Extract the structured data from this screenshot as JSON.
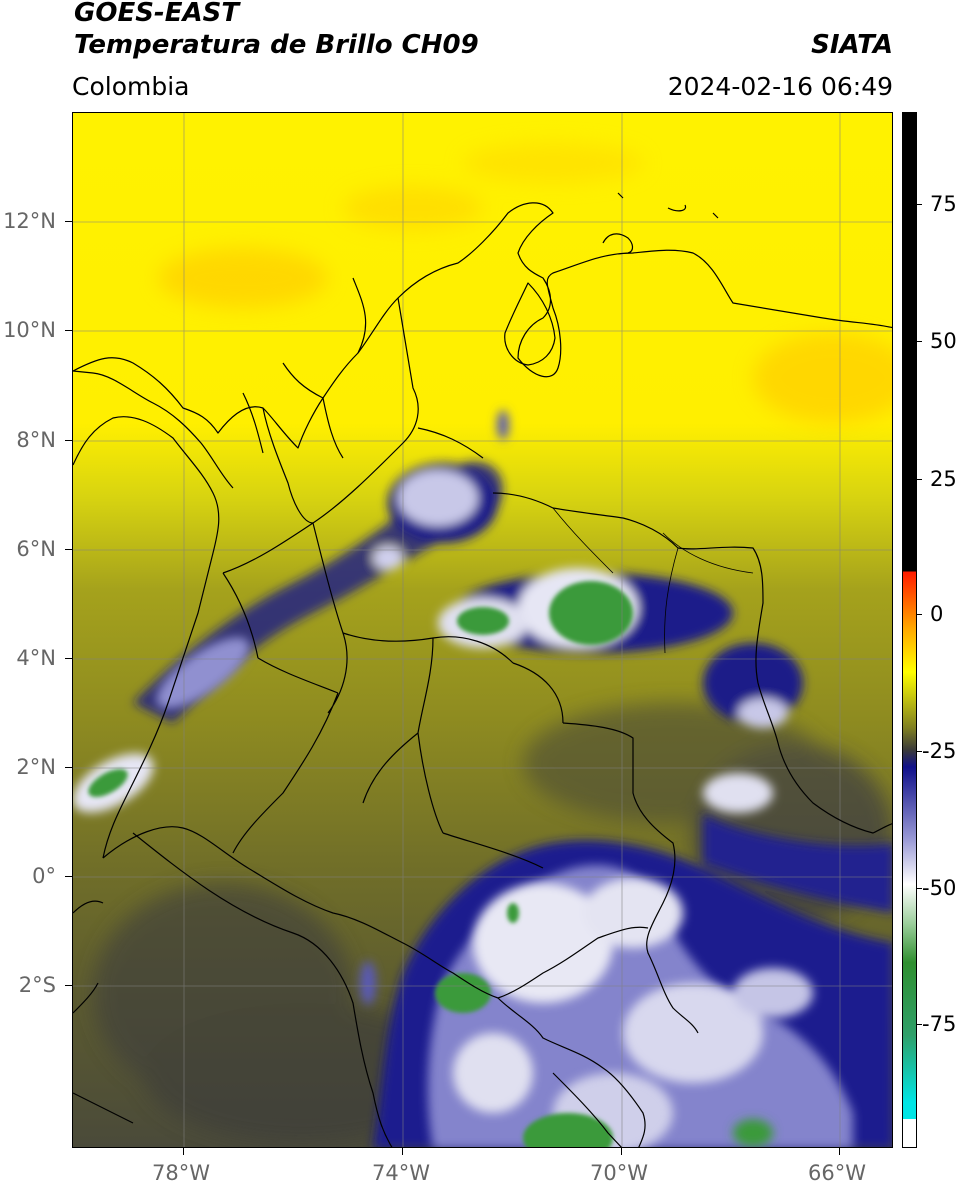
{
  "header": {
    "satellite": "GOES-EAST",
    "product": "Temperatura de Brillo CH09",
    "region": "Colombia",
    "agency": "SIATA",
    "datetime": "2024-02-16 06:49"
  },
  "map": {
    "lon_range": [
      -80,
      -65
    ],
    "lat_range": [
      -5,
      14
    ],
    "gridlines": true,
    "lon_labels": [
      "78°W",
      "74°W",
      "70°W",
      "66°W"
    ],
    "lat_labels": [
      "12°N",
      "10°N",
      "8°N",
      "6°N",
      "4°N",
      "2°N",
      "0°",
      "2°S"
    ]
  },
  "colorbar": {
    "unit_hint": "",
    "range": [
      -95,
      90
    ],
    "tick_labels": [
      "75",
      "50",
      "25",
      "0",
      "-25",
      "-50",
      "-75"
    ],
    "colors": {
      "black": "#000000",
      "red": "#ff1a00",
      "orange": "#ffa500",
      "yellow": "#ffff00",
      "olive": "#7f7f20",
      "dark": "#3a3a3a",
      "navy": "#10108a",
      "white": "#ffffff",
      "green": "#2f8f2f",
      "cyan": "#00e5e5"
    }
  }
}
